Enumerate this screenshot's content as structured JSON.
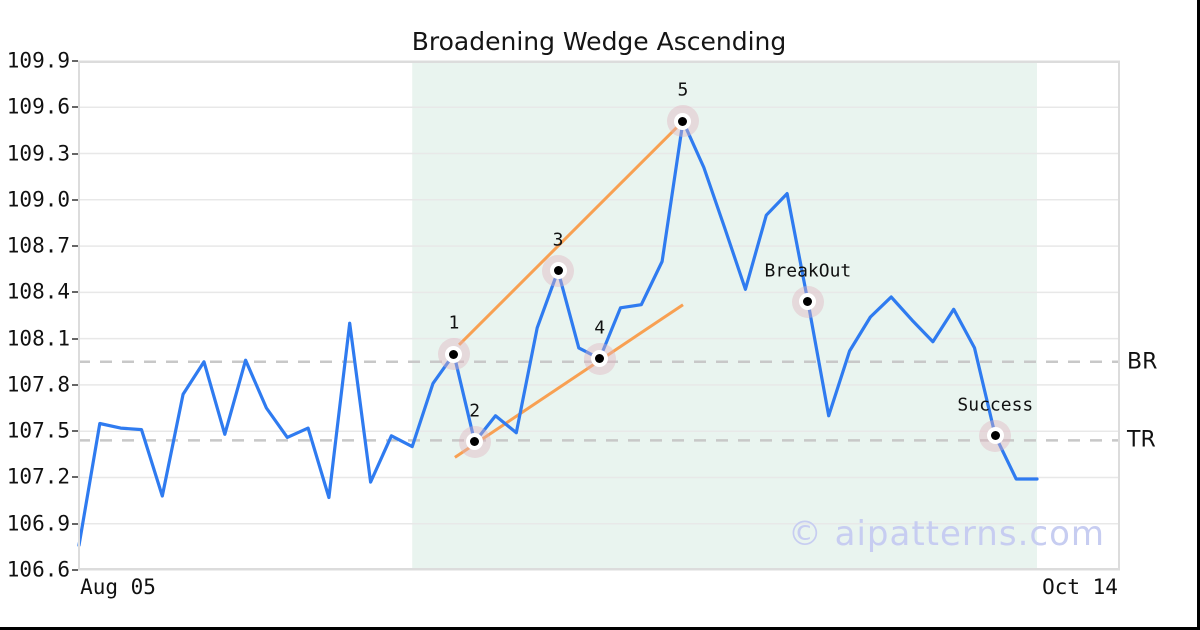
{
  "title": "Broadening Wedge Ascending",
  "watermark": "© aipatterns.com",
  "colors": {
    "price_line": "#2f7bf0",
    "trendline": "#f8a052",
    "pattern_shade": "#e9f4ef",
    "marker_halo": "#e0b2bf",
    "grid": "#e8e8e8",
    "dashed_level": "#c8c8c8",
    "plot_border": "#dcdcdc",
    "watermark": "#c7cdf1",
    "text": "#111111"
  },
  "chart_data": {
    "type": "line",
    "title": "Broadening Wedge Ascending",
    "x_axis": {
      "start_label": "Aug 05",
      "end_label": "Oct 14"
    },
    "y_axis": {
      "min": 106.6,
      "max": 109.9,
      "tick_step": 0.3,
      "ticks": [
        109.9,
        109.6,
        109.3,
        109.0,
        108.7,
        108.4,
        108.1,
        107.8,
        107.5,
        107.2,
        106.9,
        106.6
      ]
    },
    "grid": "horizontal",
    "series": [
      {
        "name": "price",
        "values": [
          106.76,
          107.55,
          107.52,
          107.51,
          107.08,
          107.74,
          107.95,
          107.48,
          107.96,
          107.65,
          107.46,
          107.52,
          107.07,
          108.2,
          107.17,
          107.47,
          107.4,
          107.81,
          108.0,
          107.43,
          107.6,
          107.49,
          108.17,
          108.54,
          108.04,
          107.97,
          108.3,
          108.32,
          108.6,
          109.51,
          109.21,
          108.82,
          108.42,
          108.9,
          109.04,
          108.34,
          107.6,
          108.02,
          108.24,
          108.37,
          108.22,
          108.08,
          108.29,
          108.04,
          107.47,
          107.19,
          107.19
        ]
      }
    ],
    "pattern_region": {
      "start_index": 16,
      "end_index": 46
    },
    "trendlines": [
      {
        "name": "upper",
        "from": {
          "index": 18.25,
          "value": 108.06
        },
        "to": {
          "index": 29,
          "value": 109.51
        }
      },
      {
        "name": "lower",
        "from": {
          "index": 18.05,
          "value": 107.33
        },
        "to": {
          "index": 29,
          "value": 108.32
        }
      }
    ],
    "levels": [
      {
        "label": "BR",
        "value": 107.95
      },
      {
        "label": "TR",
        "value": 107.44
      }
    ],
    "annotations": [
      {
        "label": "1",
        "index": 18,
        "value": 108.0
      },
      {
        "label": "2",
        "index": 19,
        "value": 107.43
      },
      {
        "label": "3",
        "index": 23,
        "value": 108.54
      },
      {
        "label": "4",
        "index": 25,
        "value": 107.97
      },
      {
        "label": "5",
        "index": 29,
        "value": 109.51
      },
      {
        "label": "BreakOut",
        "index": 35,
        "value": 108.34
      },
      {
        "label": "Success",
        "index": 44,
        "value": 107.47
      }
    ]
  }
}
